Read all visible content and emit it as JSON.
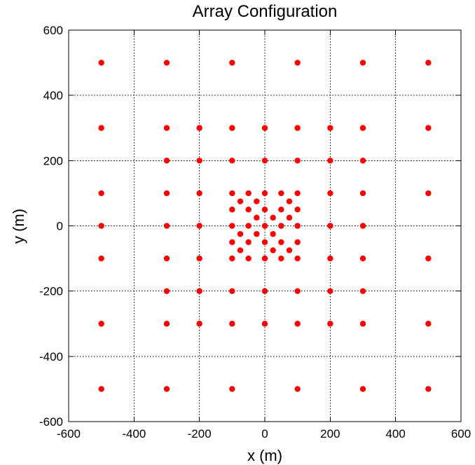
{
  "chart_data": {
    "type": "scatter",
    "title": "Array Configuration",
    "xlabel": "x (m)",
    "ylabel": "y (m)",
    "xlim": [
      -600,
      600
    ],
    "ylim": [
      -600,
      600
    ],
    "xticks": [
      -600,
      -400,
      -200,
      0,
      200,
      400,
      600
    ],
    "yticks": [
      -600,
      -400,
      -200,
      0,
      200,
      400,
      600
    ],
    "grid": true,
    "marker_color": "#ff0000",
    "series": [
      {
        "points": [
          [
            -500,
            500
          ],
          [
            -300,
            500
          ],
          [
            -100,
            500
          ],
          [
            100,
            500
          ],
          [
            300,
            500
          ],
          [
            500,
            500
          ],
          [
            -500,
            300
          ],
          [
            -300,
            300
          ],
          [
            -200,
            300
          ],
          [
            -100,
            300
          ],
          [
            0,
            300
          ],
          [
            100,
            300
          ],
          [
            200,
            300
          ],
          [
            300,
            300
          ],
          [
            500,
            300
          ],
          [
            -300,
            200
          ],
          [
            -200,
            200
          ],
          [
            -100,
            200
          ],
          [
            0,
            200
          ],
          [
            100,
            200
          ],
          [
            200,
            200
          ],
          [
            300,
            200
          ],
          [
            -500,
            100
          ],
          [
            -300,
            100
          ],
          [
            -200,
            100
          ],
          [
            -100,
            100
          ],
          [
            -50,
            100
          ],
          [
            0,
            100
          ],
          [
            50,
            100
          ],
          [
            100,
            100
          ],
          [
            200,
            100
          ],
          [
            300,
            100
          ],
          [
            500,
            100
          ],
          [
            -75,
            75
          ],
          [
            -25,
            75
          ],
          [
            75,
            75
          ],
          [
            -100,
            50
          ],
          [
            -50,
            50
          ],
          [
            0,
            50
          ],
          [
            50,
            50
          ],
          [
            100,
            50
          ],
          [
            -25,
            25
          ],
          [
            25,
            25
          ],
          [
            75,
            25
          ],
          [
            -500,
            0
          ],
          [
            -300,
            0
          ],
          [
            -200,
            0
          ],
          [
            -100,
            0
          ],
          [
            -50,
            0
          ],
          [
            0,
            0
          ],
          [
            50,
            0
          ],
          [
            100,
            0
          ],
          [
            200,
            0
          ],
          [
            300,
            0
          ],
          [
            -75,
            -25
          ],
          [
            -25,
            -25
          ],
          [
            25,
            -25
          ],
          [
            -100,
            -50
          ],
          [
            -50,
            -50
          ],
          [
            0,
            -50
          ],
          [
            50,
            -50
          ],
          [
            100,
            -50
          ],
          [
            -75,
            -75
          ],
          [
            25,
            -75
          ],
          [
            75,
            -75
          ],
          [
            -500,
            -100
          ],
          [
            -300,
            -100
          ],
          [
            -200,
            -100
          ],
          [
            -100,
            -100
          ],
          [
            -50,
            -100
          ],
          [
            0,
            -100
          ],
          [
            50,
            -100
          ],
          [
            100,
            -100
          ],
          [
            200,
            -100
          ],
          [
            300,
            -100
          ],
          [
            500,
            -100
          ],
          [
            -300,
            -200
          ],
          [
            -200,
            -200
          ],
          [
            -100,
            -200
          ],
          [
            0,
            -200
          ],
          [
            100,
            -200
          ],
          [
            200,
            -200
          ],
          [
            300,
            -200
          ],
          [
            -500,
            -300
          ],
          [
            -300,
            -300
          ],
          [
            -200,
            -300
          ],
          [
            -100,
            -300
          ],
          [
            0,
            -300
          ],
          [
            100,
            -300
          ],
          [
            200,
            -300
          ],
          [
            300,
            -300
          ],
          [
            500,
            -300
          ],
          [
            -500,
            -500
          ],
          [
            -300,
            -500
          ],
          [
            -100,
            -500
          ],
          [
            100,
            -500
          ],
          [
            300,
            -500
          ],
          [
            500,
            -500
          ]
        ]
      }
    ]
  }
}
